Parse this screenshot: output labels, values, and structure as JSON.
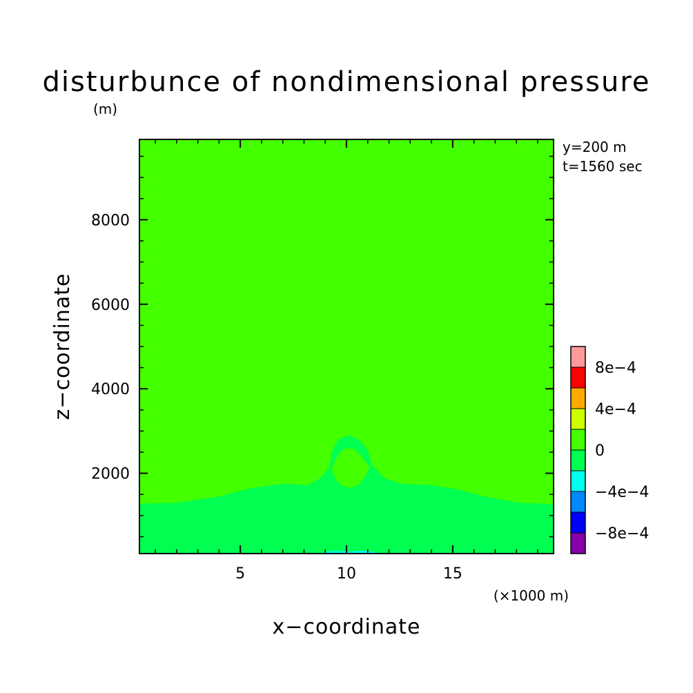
{
  "chart_data": {
    "type": "contour",
    "title": "disturbunce of nondimensional pressure",
    "y_unit": "(m)",
    "x_unit": "(×1000 m)",
    "xlabel": "x−coordinate",
    "ylabel": "z−coordinate",
    "annotations": [
      "y=200 m",
      "t=1560 sec"
    ],
    "xlim": [
      0.25,
      19.75
    ],
    "ylim": [
      100,
      9900
    ],
    "x_ticks": [
      {
        "value": 5,
        "label": "5"
      },
      {
        "value": 10,
        "label": "10"
      },
      {
        "value": 15,
        "label": "15"
      }
    ],
    "y_ticks": [
      {
        "value": 2000,
        "label": "2000"
      },
      {
        "value": 4000,
        "label": "4000"
      },
      {
        "value": 6000,
        "label": "6000"
      },
      {
        "value": 8000,
        "label": "8000"
      }
    ],
    "background_level": "0 to 2e-4",
    "regions": [
      {
        "level": "-2e-4 to 0",
        "color": "#00ff50",
        "description": "lower layer",
        "boundary": [
          [
            0.25,
            100
          ],
          [
            0.25,
            1280
          ],
          [
            2,
            1300
          ],
          [
            4,
            1450
          ],
          [
            5.5,
            1650
          ],
          [
            7,
            1750
          ],
          [
            8.2,
            1720
          ],
          [
            8.8,
            1900
          ],
          [
            9.2,
            2150
          ],
          [
            9.3,
            2500
          ],
          [
            9.6,
            2800
          ],
          [
            10.1,
            2900
          ],
          [
            10.6,
            2800
          ],
          [
            11,
            2550
          ],
          [
            11.2,
            2200
          ],
          [
            11.8,
            1880
          ],
          [
            12.6,
            1750
          ],
          [
            14,
            1720
          ],
          [
            15.2,
            1620
          ],
          [
            16.5,
            1450
          ],
          [
            18.2,
            1300
          ],
          [
            19.75,
            1270
          ],
          [
            19.75,
            100
          ]
        ]
      },
      {
        "level": "0 to 2e-4",
        "color": "#44ff00",
        "description": "bubble core",
        "boundary": [
          [
            9.3,
            2100
          ],
          [
            9.5,
            2350
          ],
          [
            9.8,
            2550
          ],
          [
            10.1,
            2600
          ],
          [
            10.4,
            2560
          ],
          [
            10.7,
            2400
          ],
          [
            11.1,
            2150
          ],
          [
            10.9,
            1950
          ],
          [
            10.6,
            1750
          ],
          [
            10.2,
            1650
          ],
          [
            9.8,
            1700
          ],
          [
            9.5,
            1850
          ]
        ]
      },
      {
        "level": "-4e-4 to -2e-4",
        "color": "#00ffee",
        "description": "surface patch",
        "boundary": [
          [
            8.8,
            100
          ],
          [
            9.0,
            140
          ],
          [
            9.4,
            160
          ],
          [
            10.2,
            150
          ],
          [
            10.8,
            170
          ],
          [
            11.3,
            140
          ],
          [
            11.5,
            100
          ]
        ]
      }
    ],
    "colorbar": {
      "levels": [
        {
          "color": "#8800aa"
        },
        {
          "color": "#0000ff"
        },
        {
          "color": "#0088ff"
        },
        {
          "color": "#00ffee"
        },
        {
          "color": "#00ff50"
        },
        {
          "color": "#44ff00"
        },
        {
          "color": "#ccff00"
        },
        {
          "color": "#ffaa00"
        },
        {
          "color": "#ff0000"
        },
        {
          "color": "#ff9a9a"
        }
      ],
      "labels": [
        {
          "value": "-8e-4",
          "text": "−8e−4"
        },
        {
          "value": "-4e-4",
          "text": "−4e−4"
        },
        {
          "value": "0",
          "text": "0"
        },
        {
          "value": "4e-4",
          "text": "4e−4"
        },
        {
          "value": "8e-4",
          "text": "8e−4"
        }
      ]
    }
  }
}
